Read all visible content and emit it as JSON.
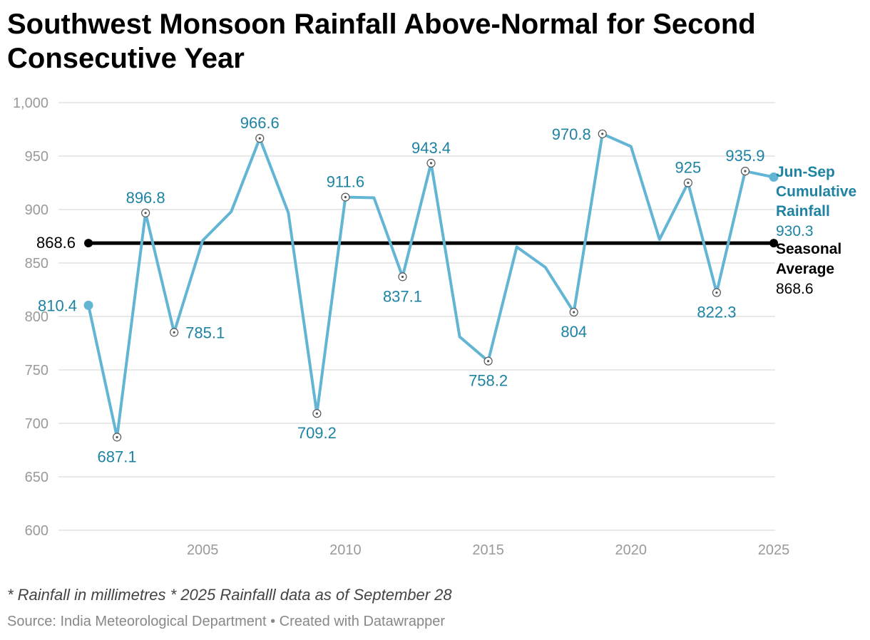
{
  "title": "Southwest Monsoon Rainfall Above-Normal for Second Consecutive Year",
  "note": "* Rainfall in millimetres * 2025 Rainfalll data as of September 28",
  "source": "Source: India Meteorological Department • Created with Datawrapper",
  "colors": {
    "series": "#63b5d4",
    "label": "#1e83a3",
    "average": "#000000",
    "grid": "#e2e2e2",
    "tick": "#9a9a9a"
  },
  "chart_data": {
    "type": "line",
    "title": "Southwest Monsoon Rainfall Above-Normal for Second Consecutive Year",
    "xlabel": "",
    "ylabel": "",
    "xlim": [
      2000,
      2025
    ],
    "ylim": [
      600,
      1000
    ],
    "grid": true,
    "y_ticks": [
      600,
      650,
      700,
      750,
      800,
      850,
      900,
      950,
      1000
    ],
    "y_tick_labels": [
      "600",
      "650",
      "700",
      "750",
      "800",
      "850",
      "900",
      "950",
      "1,000"
    ],
    "x_ticks": [
      2005,
      2010,
      2015,
      2020,
      2025
    ],
    "x_tick_labels": [
      "2005",
      "2010",
      "2015",
      "2020",
      "2025"
    ],
    "series": [
      {
        "name": "Jun-Sep Cumulative Rainfall",
        "x": [
          2001,
          2002,
          2003,
          2004,
          2005,
          2006,
          2007,
          2008,
          2009,
          2010,
          2011,
          2012,
          2013,
          2014,
          2015,
          2016,
          2017,
          2018,
          2019,
          2020,
          2021,
          2022,
          2023,
          2024,
          2025
        ],
        "y": [
          810.4,
          687.1,
          896.8,
          785.1,
          871,
          898,
          966.6,
          897,
          709.2,
          911.6,
          911,
          837.1,
          943.4,
          781,
          758.2,
          865,
          846,
          804,
          970.8,
          959,
          872,
          925,
          822.3,
          935.9,
          930.3
        ],
        "end_label": "930.3"
      },
      {
        "name": "Seasonal Average",
        "x": [
          2001,
          2025
        ],
        "y": [
          868.6,
          868.6
        ],
        "start_label": "868.6",
        "end_label": "868.6"
      }
    ],
    "annotations": [
      {
        "x": 2001,
        "y": 810.4,
        "text": "810.4",
        "pos": "left",
        "marker": "filled"
      },
      {
        "x": 2002,
        "y": 687.1,
        "text": "687.1",
        "pos": "below",
        "marker": "ring"
      },
      {
        "x": 2003,
        "y": 896.8,
        "text": "896.8",
        "pos": "above",
        "marker": "ring"
      },
      {
        "x": 2004,
        "y": 785.1,
        "text": "785.1",
        "pos": "right",
        "marker": "ring"
      },
      {
        "x": 2007,
        "y": 966.6,
        "text": "966.6",
        "pos": "above",
        "marker": "ring"
      },
      {
        "x": 2009,
        "y": 709.2,
        "text": "709.2",
        "pos": "below",
        "marker": "ring"
      },
      {
        "x": 2010,
        "y": 911.6,
        "text": "911.6",
        "pos": "above",
        "marker": "ring"
      },
      {
        "x": 2012,
        "y": 837.1,
        "text": "837.1",
        "pos": "below",
        "marker": "ring"
      },
      {
        "x": 2013,
        "y": 943.4,
        "text": "943.4",
        "pos": "above",
        "marker": "ring"
      },
      {
        "x": 2015,
        "y": 758.2,
        "text": "758.2",
        "pos": "below",
        "marker": "ring"
      },
      {
        "x": 2018,
        "y": 804,
        "text": "804",
        "pos": "below",
        "marker": "ring"
      },
      {
        "x": 2019,
        "y": 970.8,
        "text": "970.8",
        "pos": "left",
        "marker": "ring"
      },
      {
        "x": 2022,
        "y": 925,
        "text": "925",
        "pos": "above",
        "marker": "ring"
      },
      {
        "x": 2023,
        "y": 822.3,
        "text": "822.3",
        "pos": "below",
        "marker": "ring"
      },
      {
        "x": 2024,
        "y": 935.9,
        "text": "935.9",
        "pos": "above",
        "marker": "ring"
      }
    ]
  }
}
